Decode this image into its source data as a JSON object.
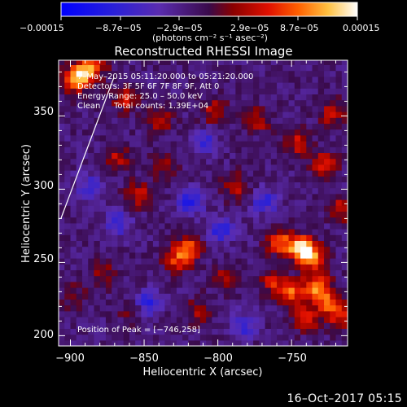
{
  "chart_data": {
    "type": "heatmap",
    "title": "Reconstructed RHESSI Image",
    "xlabel": "Heliocentric X (arcsec)",
    "ylabel": "Heliocentric Y (arcsec)",
    "xlim": [
      -908,
      -712
    ],
    "ylim": [
      193,
      388
    ],
    "xticks": [
      -900,
      -850,
      -800,
      -750
    ],
    "xtick_labels": [
      "−900",
      "−850",
      "−800",
      "−750"
    ],
    "yticks": [
      200,
      250,
      300,
      350
    ],
    "ytick_labels": [
      "200",
      "250",
      "300",
      "350"
    ],
    "grid": false,
    "colorbar": {
      "min": -0.00015,
      "max": 0.00015,
      "tick_labels": [
        "−0.00015",
        "−8.7e−05",
        "−2.9e−05",
        "2.9e−05",
        "8.7e−05",
        "0.00015"
      ],
      "units_label": "(photons cm⁻² s⁻¹ asec⁻²)",
      "colormap": "blue-purple-red-yellow-white"
    },
    "annotations": {
      "time_range": "7–May–2015 05:11:20.000 to 05:21:20.000",
      "detectors": "Detectors: 3F 5F 6F 7F 8F 9F, Att 0",
      "energy_range": "Energy Range: 25.0 – 50.0 keV",
      "method": "Clean",
      "total_counts": "Total counts: 1.39E+04",
      "peak": "Position of Peak = [−746,258]"
    },
    "peak": {
      "x": -746,
      "y": 258
    },
    "hotspots": [
      {
        "x": -746,
        "y": 258,
        "value": 0.00015
      },
      {
        "x": -738,
        "y": 252,
        "value": 0.00012
      },
      {
        "x": -760,
        "y": 262,
        "value": 0.0001
      },
      {
        "x": -735,
        "y": 232,
        "value": 0.00012
      },
      {
        "x": -752,
        "y": 228,
        "value": 0.0001
      },
      {
        "x": -728,
        "y": 222,
        "value": 9e-05
      },
      {
        "x": -742,
        "y": 210,
        "value": 9e-05
      },
      {
        "x": -720,
        "y": 212,
        "value": 8e-05
      },
      {
        "x": -765,
        "y": 235,
        "value": 7e-05
      },
      {
        "x": -893,
        "y": 378,
        "value": 0.00012
      },
      {
        "x": -900,
        "y": 372,
        "value": 9e-05
      },
      {
        "x": -885,
        "y": 385,
        "value": 8e-05
      },
      {
        "x": -822,
        "y": 258,
        "value": 0.0001
      },
      {
        "x": -830,
        "y": 250,
        "value": 8e-05
      },
      {
        "x": -865,
        "y": 360,
        "value": 7e-05
      },
      {
        "x": -842,
        "y": 345,
        "value": 7e-05
      },
      {
        "x": -855,
        "y": 295,
        "value": 7e-05
      },
      {
        "x": -870,
        "y": 320,
        "value": 6e-05
      },
      {
        "x": -805,
        "y": 352,
        "value": 6e-05
      },
      {
        "x": -790,
        "y": 300,
        "value": 6e-05
      },
      {
        "x": -775,
        "y": 345,
        "value": 6e-05
      },
      {
        "x": -748,
        "y": 330,
        "value": 7e-05
      },
      {
        "x": -730,
        "y": 315,
        "value": 8e-05
      },
      {
        "x": -724,
        "y": 350,
        "value": 7e-05
      },
      {
        "x": -718,
        "y": 285,
        "value": 7e-05
      },
      {
        "x": -880,
        "y": 240,
        "value": 5e-05
      },
      {
        "x": -860,
        "y": 215,
        "value": 4e-05
      },
      {
        "x": -900,
        "y": 225,
        "value": 4e-05
      },
      {
        "x": -815,
        "y": 215,
        "value": 5e-05
      },
      {
        "x": -798,
        "y": 238,
        "value": 5e-05
      },
      {
        "x": -838,
        "y": 315,
        "value": 6e-05
      }
    ],
    "coldspots": [
      {
        "x": -820,
        "y": 290,
        "value": -9e-05
      },
      {
        "x": -800,
        "y": 270,
        "value": -8e-05
      },
      {
        "x": -850,
        "y": 220,
        "value": -8e-05
      },
      {
        "x": -785,
        "y": 205,
        "value": -7e-05
      },
      {
        "x": -870,
        "y": 275,
        "value": -7e-05
      },
      {
        "x": -810,
        "y": 330,
        "value": -6e-05
      },
      {
        "x": -770,
        "y": 290,
        "value": -7e-05
      },
      {
        "x": -890,
        "y": 300,
        "value": -6e-05
      }
    ]
  },
  "footer": {
    "date_stamp": "16–Oct–2017 05:15"
  }
}
